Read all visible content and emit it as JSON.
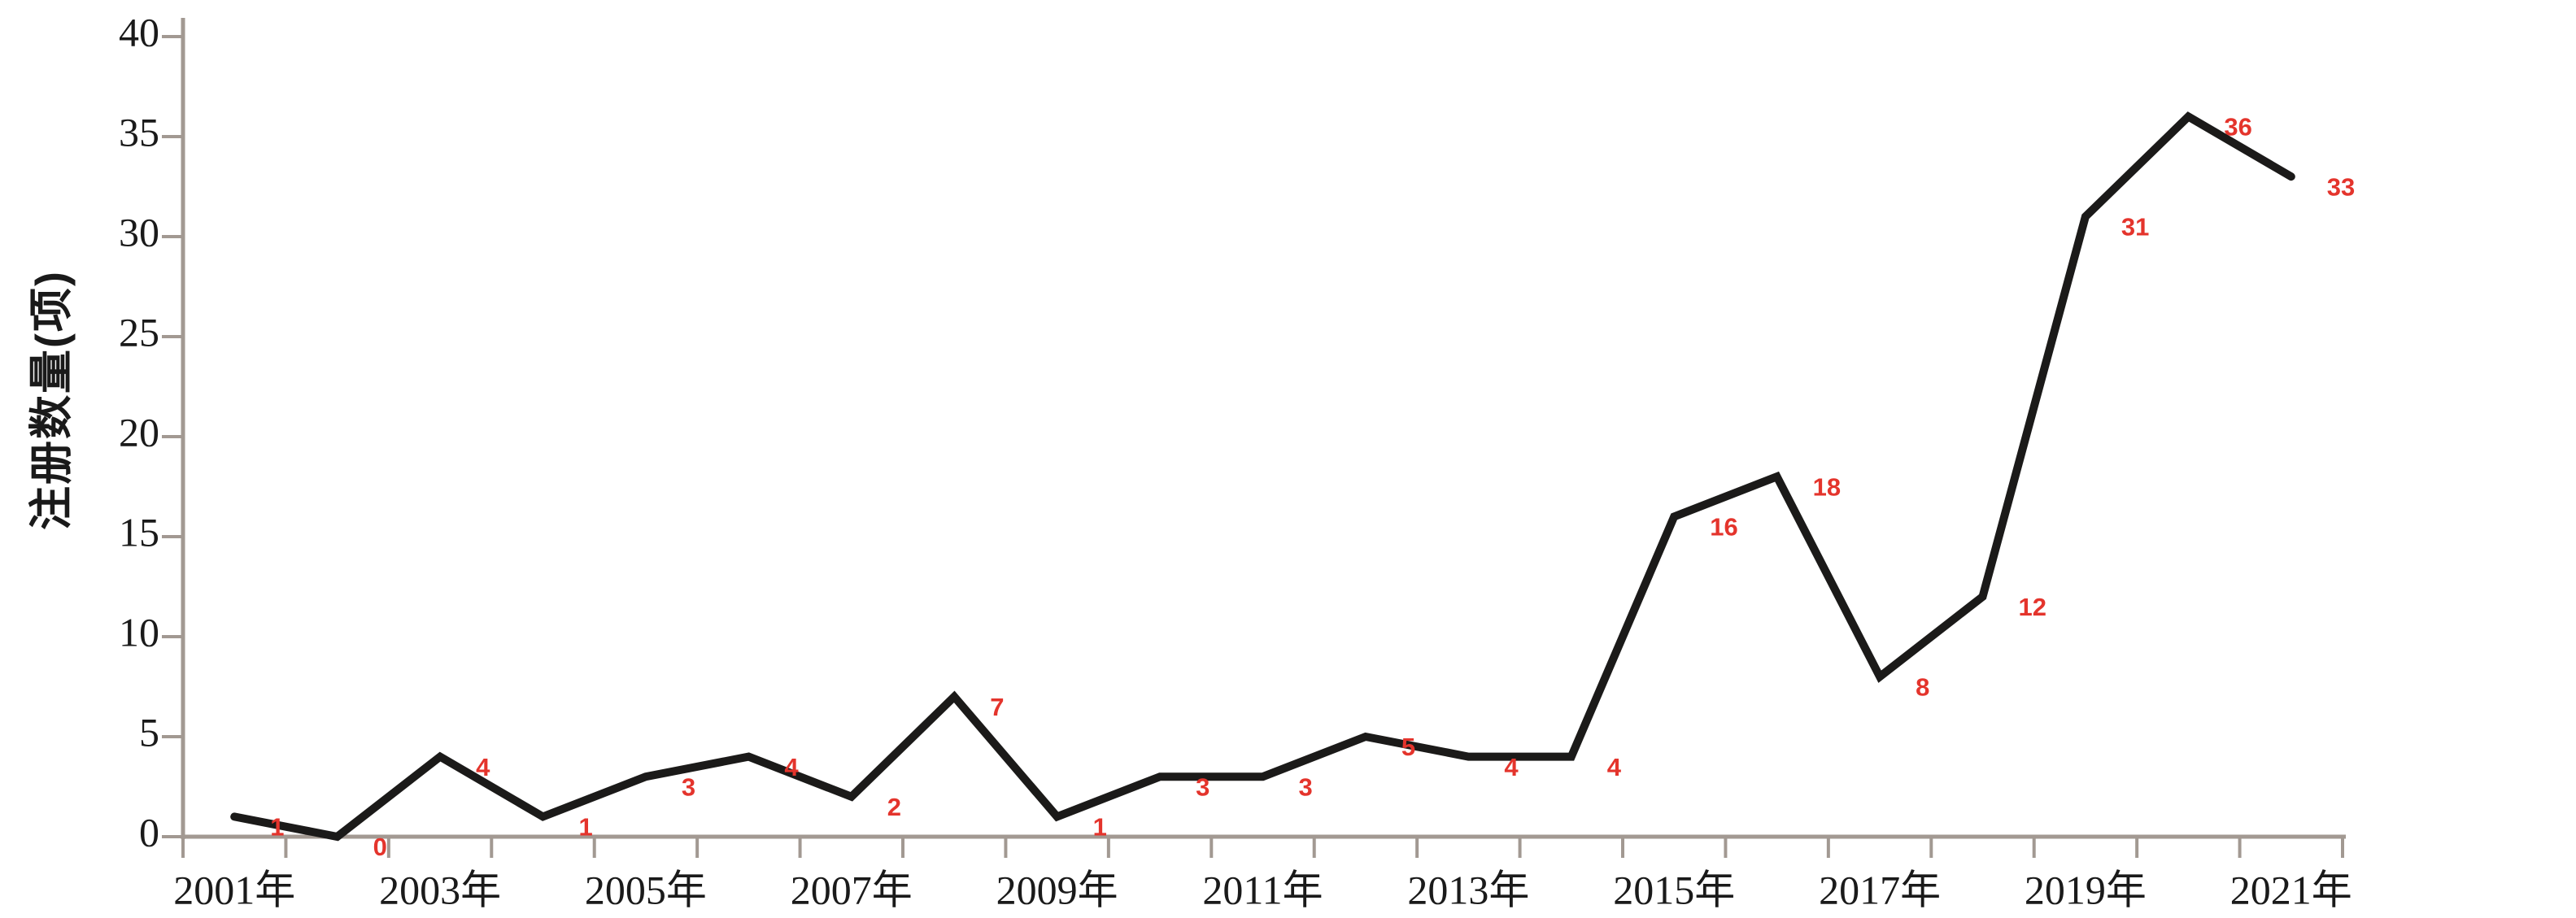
{
  "chart_data": {
    "type": "line",
    "ylabel": "注册数量(项)",
    "xlabel": "",
    "categories": [
      "2001",
      "2002",
      "2003",
      "2004",
      "2005",
      "2006",
      "2007",
      "2008",
      "2009",
      "2010",
      "2011",
      "2012",
      "2013",
      "2014",
      "2015",
      "2016",
      "2017",
      "2018",
      "2019",
      "2020",
      "2021"
    ],
    "values": [
      1,
      0,
      4,
      1,
      3,
      4,
      2,
      7,
      1,
      3,
      3,
      5,
      4,
      4,
      16,
      18,
      8,
      12,
      31,
      36,
      33
    ],
    "xtick_labels": [
      "2001年",
      "2003年",
      "2005年",
      "2007年",
      "2009年",
      "2011年",
      "2013年",
      "2015年",
      "2017年",
      "2019年",
      "2021年"
    ],
    "xtick_label_every": 2,
    "yticks": [
      0,
      5,
      10,
      15,
      20,
      25,
      30,
      35,
      40
    ],
    "ylim": [
      0,
      40
    ],
    "grid": false,
    "legend": "none",
    "data_labels": [
      "1",
      "0",
      "4",
      "1",
      "3",
      "4",
      "2",
      "7",
      "1",
      "3",
      "3",
      "5",
      "4",
      "4",
      "16",
      "18",
      "8",
      "12",
      "31",
      "36",
      "33"
    ],
    "colors": {
      "line": "#1b1a19",
      "data_label": "#e4342c",
      "axis": "#a29992",
      "text": "#1a1a1a",
      "background": "#ffffff"
    }
  }
}
